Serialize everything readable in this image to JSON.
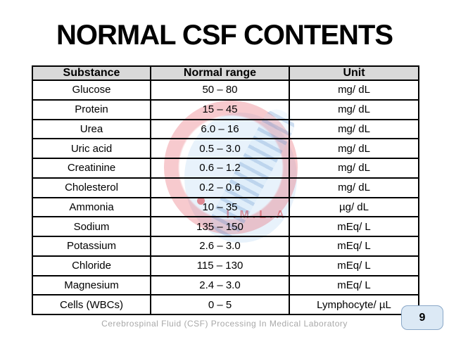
{
  "title": "NORMAL CSF CONTENTS",
  "table": {
    "columns": [
      "Substance",
      "Normal range",
      "Unit"
    ],
    "rows": [
      {
        "substance": "Glucose",
        "range": "50 – 80",
        "unit": "mg/ dL"
      },
      {
        "substance": "Protein",
        "range": "15 – 45",
        "unit": "mg/ dL"
      },
      {
        "substance": "Urea",
        "range": "6.0 – 16",
        "unit": "mg/ dL"
      },
      {
        "substance": "Uric acid",
        "range": "0.5 – 3.0",
        "unit": "mg/ dL"
      },
      {
        "substance": "Creatinine",
        "range": "0.6 – 1.2",
        "unit": "mg/ dL"
      },
      {
        "substance": "Cholesterol",
        "range": "0.2 – 0.6",
        "unit": "mg/ dL"
      },
      {
        "substance": "Ammonia",
        "range": "10 – 35",
        "unit": "µg/ dL"
      },
      {
        "substance": "Sodium",
        "range": "135 – 150",
        "unit": "mEq/ L"
      },
      {
        "substance": "Potassium",
        "range": "2.6 – 3.0",
        "unit": "mEq/ L"
      },
      {
        "substance": "Chloride",
        "range": "115 – 130",
        "unit": "mEq/ L"
      },
      {
        "substance": "Magnesium",
        "range": "2.4 – 3.0",
        "unit": "mEq/ L"
      },
      {
        "substance": "Cells (WBCs)",
        "range": "0 – 5",
        "unit": "Lymphocyte/ µL"
      }
    ]
  },
  "watermark": {
    "text": "I.M.L.A."
  },
  "footer": "Cerebrospinal Fluid (CSF) Processing In Medical Laboratory",
  "page_number": "9",
  "colors": {
    "header_bg": "#d9d9d9",
    "table_border": "#000000",
    "badge_bg": "#dce9f5",
    "badge_border": "#8aa8c8",
    "footer_text": "#a8a8a8",
    "watermark_red": "rgba(228,80,92,0.30)",
    "watermark_blue": "rgba(120,165,215,0.38)"
  }
}
